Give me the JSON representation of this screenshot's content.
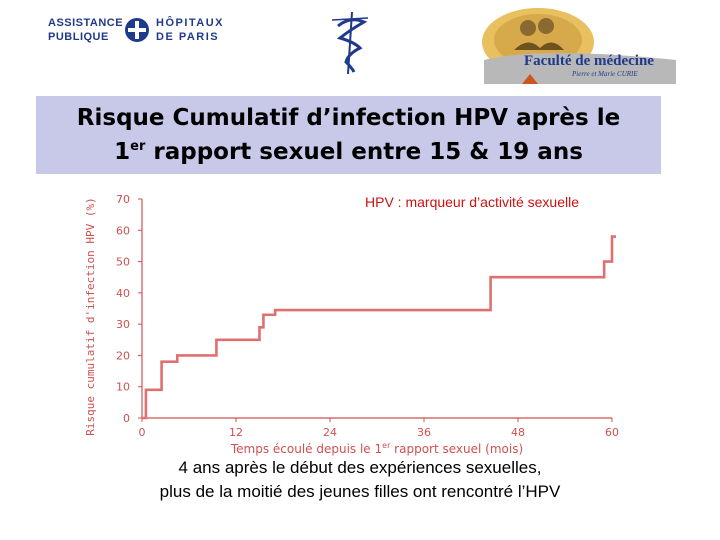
{
  "logos": {
    "aphp": {
      "left_text": [
        "ASSISTANCE",
        "PUBLIQUE"
      ],
      "right_text": [
        "HÔPITAUX",
        "DE PARIS"
      ],
      "color": "#1f3a8a"
    },
    "caduceus": {
      "icon": "caduceus-icon",
      "color": "#1f3a8a"
    },
    "faculty": {
      "name": "Faculté de médecine",
      "subtitle": "Pierre et Marie CURIE",
      "color": "#1f3a8a"
    }
  },
  "title": {
    "line1": "Risque Cumulatif d’infection HPV après le",
    "line2_pre": "1",
    "line2_sup": "er",
    "line2_post": " rapport sexuel entre 15 & 19 ans",
    "background": "#c8c8e8"
  },
  "chart_data": {
    "type": "line",
    "step": true,
    "annotation": "HPV : marqueur d’activité sexuelle",
    "annotation_color": "#cc1111",
    "ylabel": "Risque cumulatif d'infection HPV (%)",
    "xlabel_pre": "Temps écoulé depuis le 1",
    "xlabel_sup": "er",
    "xlabel_post": " rapport sexuel (mois)",
    "axis_color": "#d05050",
    "line_color": "#e07070",
    "xlim": [
      0,
      60
    ],
    "ylim": [
      0,
      70
    ],
    "xticks": [
      "0",
      "12",
      "24",
      "36",
      "48",
      "60"
    ],
    "yticks": [
      "0",
      "10",
      "20",
      "30",
      "40",
      "50",
      "60",
      "70"
    ],
    "grid": false,
    "series": [
      {
        "x": [
          0,
          0.5,
          2.5,
          4.5,
          9.5,
          15,
          15.5,
          17,
          44.5,
          59,
          60
        ],
        "y": [
          0,
          9,
          18,
          20,
          25,
          29,
          33,
          34.5,
          45,
          50,
          58
        ]
      }
    ]
  },
  "footer": {
    "line1": "4 ans après le début des expériences sexuelles,",
    "line2": "plus de la moitié des jeunes filles ont rencontré l’HPV"
  }
}
